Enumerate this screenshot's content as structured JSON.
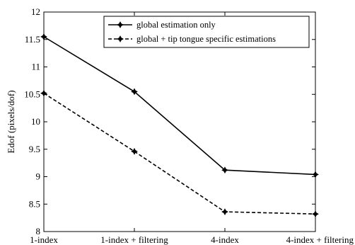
{
  "chart_data": {
    "type": "line",
    "title": "",
    "xlabel": "",
    "ylabel": "Edof (pixels/dof)",
    "categories": [
      "1-index",
      "1-index + filtering",
      "4-index",
      "4-index + filtering"
    ],
    "ylim": [
      8,
      12
    ],
    "yticks": [
      "8",
      "8.5",
      "9",
      "9.5",
      "10",
      "10.5",
      "11",
      "11.5",
      "12"
    ],
    "grid": false,
    "legend_position": "top-right",
    "series": [
      {
        "name": "global estimation only",
        "values": [
          11.55,
          10.55,
          9.12,
          9.04
        ],
        "line_style": "solid",
        "color": "#000000"
      },
      {
        "name": "global + tip tongue specific estimations",
        "values": [
          10.52,
          9.46,
          8.36,
          8.32
        ],
        "line_style": "dashed",
        "color": "#000000"
      }
    ]
  }
}
